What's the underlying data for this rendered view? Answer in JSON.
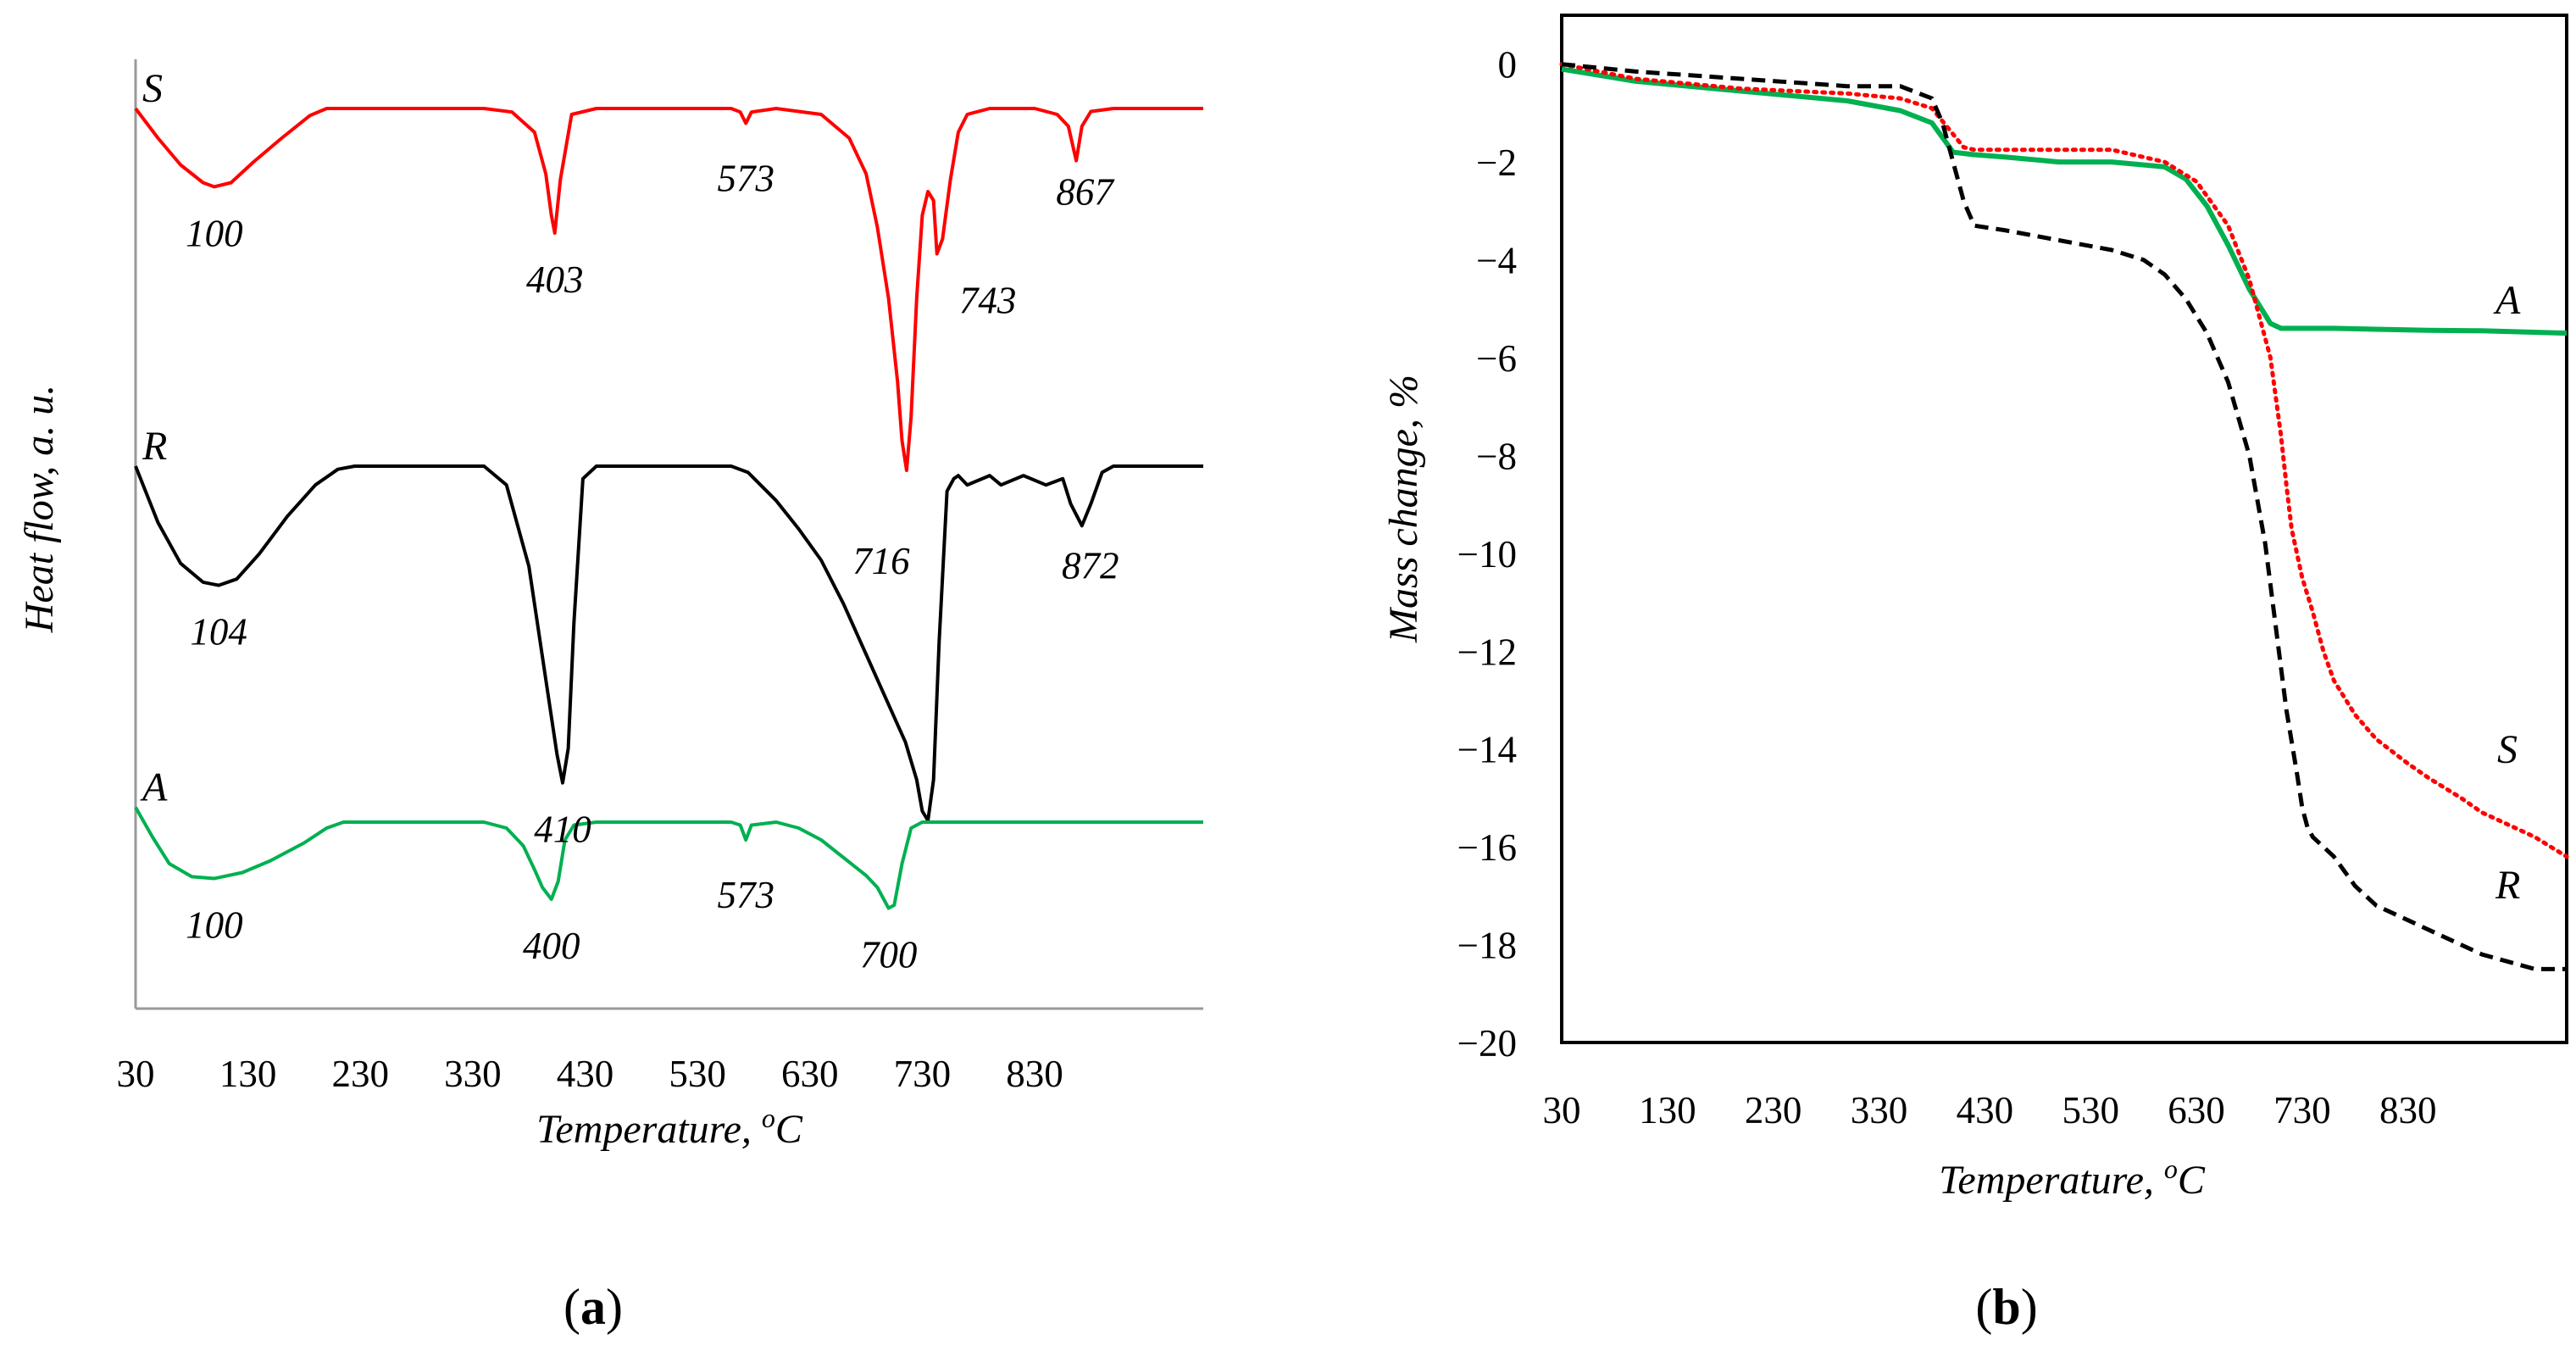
{
  "panels": {
    "a": {
      "label_open": "(",
      "label_letter": "a",
      "label_close": ")"
    },
    "b": {
      "label_open": "(",
      "label_letter": "b",
      "label_close": ")"
    }
  },
  "colors": {
    "S": "#ff0000",
    "R": "#000000",
    "A": "#00b050"
  },
  "chart_data": [
    {
      "type": "line",
      "panel": "a",
      "title": "",
      "xlabel": "Temperature, ",
      "xlabel_super": "o",
      "xlabel_unit": "C",
      "ylabel_main": "Heat flow, ",
      "ylabel_unit": "a. u.",
      "xlim": [
        30,
        980
      ],
      "x_ticks": [
        30,
        130,
        230,
        330,
        430,
        530,
        630,
        730,
        830
      ],
      "x_tick_labels": [
        "30",
        "130",
        "230",
        "330",
        "430",
        "530",
        "630",
        "730",
        "830"
      ],
      "y_ticks": "none (arbitrary units, curves offset vertically)",
      "series": [
        {
          "name": "S",
          "color": "#ff0000",
          "style": "solid",
          "baseline": 0,
          "x": [
            30,
            50,
            70,
            90,
            100,
            115,
            135,
            160,
            185,
            200,
            215,
            300,
            340,
            365,
            385,
            395,
            400,
            403,
            408,
            418,
            440,
            500,
            560,
            568,
            573,
            578,
            600,
            640,
            665,
            680,
            690,
            700,
            708,
            712,
            716,
            720,
            725,
            730,
            735,
            740,
            743,
            748,
            755,
            762,
            770,
            790,
            830,
            850,
            860,
            867,
            872,
            880,
            900,
            980
          ],
          "y": [
            0,
            -0.5,
            -0.95,
            -1.25,
            -1.32,
            -1.25,
            -0.9,
            -0.5,
            -0.12,
            0,
            0,
            0,
            0,
            -0.06,
            -0.4,
            -1.1,
            -1.8,
            -2.1,
            -1.2,
            -0.1,
            0,
            0,
            0,
            -0.06,
            -0.25,
            -0.06,
            0,
            -0.1,
            -0.5,
            -1.1,
            -2.0,
            -3.2,
            -4.6,
            -5.6,
            -6.1,
            -5.2,
            -3.2,
            -1.8,
            -1.4,
            -1.55,
            -2.45,
            -2.2,
            -1.2,
            -0.4,
            -0.1,
            0,
            0,
            -0.1,
            -0.3,
            -0.88,
            -0.3,
            -0.05,
            0,
            0
          ],
          "peak_labels": [
            {
              "x": 100,
              "text": "100"
            },
            {
              "x": 403,
              "text": "403"
            },
            {
              "x": 573,
              "text": "573"
            },
            {
              "x": 743,
              "text": "743"
            },
            {
              "x": 716,
              "text": "716"
            },
            {
              "x": 867,
              "text": "867"
            }
          ]
        },
        {
          "name": "R",
          "color": "#000000",
          "style": "solid",
          "baseline": 0,
          "x": [
            30,
            50,
            70,
            90,
            104,
            120,
            140,
            165,
            190,
            210,
            225,
            300,
            340,
            360,
            380,
            395,
            405,
            410,
            415,
            420,
            428,
            440,
            500,
            560,
            575,
            600,
            620,
            640,
            660,
            680,
            700,
            715,
            725,
            730,
            735,
            740,
            745,
            752,
            758,
            762,
            770,
            790,
            800,
            820,
            840,
            855,
            862,
            872,
            880,
            890,
            900,
            980
          ],
          "y": [
            0,
            -0.9,
            -1.55,
            -1.85,
            -1.9,
            -1.8,
            -1.4,
            -0.8,
            -0.3,
            -0.05,
            0,
            0,
            0,
            -0.3,
            -1.6,
            -3.4,
            -4.6,
            -5.05,
            -4.5,
            -2.5,
            -0.2,
            0,
            0,
            0,
            -0.1,
            -0.55,
            -1.0,
            -1.5,
            -2.2,
            -3.0,
            -3.8,
            -4.4,
            -5.0,
            -5.5,
            -5.65,
            -5.0,
            -2.8,
            -0.4,
            -0.2,
            -0.15,
            -0.3,
            -0.15,
            -0.3,
            -0.15,
            -0.3,
            -0.2,
            -0.6,
            -0.95,
            -0.6,
            -0.1,
            0,
            0
          ],
          "peak_labels": [
            {
              "x": 104,
              "text": "104"
            },
            {
              "x": 410,
              "text": "410"
            },
            {
              "x": 872,
              "text": "872"
            }
          ]
        },
        {
          "name": "A",
          "color": "#00b050",
          "style": "solid",
          "baseline": 0,
          "x": [
            30,
            45,
            60,
            80,
            100,
            125,
            150,
            180,
            200,
            215,
            230,
            300,
            340,
            360,
            375,
            385,
            392,
            400,
            406,
            412,
            420,
            440,
            560,
            568,
            573,
            578,
            600,
            620,
            640,
            660,
            680,
            690,
            700,
            705,
            712,
            720,
            730,
            980
          ],
          "y": [
            0.25,
            -0.25,
            -0.7,
            -0.92,
            -0.95,
            -0.85,
            -0.65,
            -0.35,
            -0.1,
            0,
            0,
            0,
            0,
            -0.1,
            -0.4,
            -0.8,
            -1.1,
            -1.3,
            -1.0,
            -0.3,
            -0.05,
            0,
            0,
            -0.05,
            -0.3,
            -0.05,
            0,
            -0.1,
            -0.3,
            -0.6,
            -0.9,
            -1.1,
            -1.45,
            -1.4,
            -0.7,
            -0.1,
            0,
            0
          ],
          "peak_labels": [
            {
              "x": 100,
              "text": "100"
            },
            {
              "x": 400,
              "text": "400"
            },
            {
              "x": 573,
              "text": "573"
            },
            {
              "x": 700,
              "text": "700"
            }
          ]
        }
      ]
    },
    {
      "type": "line",
      "panel": "b",
      "title": "",
      "xlabel": "Temperature, ",
      "xlabel_super": "o",
      "xlabel_unit": "C",
      "ylabel": "Mass change, %",
      "xlim": [
        30,
        980
      ],
      "ylim": [
        -20,
        1
      ],
      "x_ticks": [
        30,
        130,
        230,
        330,
        430,
        530,
        630,
        730,
        830
      ],
      "x_tick_labels": [
        "30",
        "130",
        "230",
        "330",
        "430",
        "530",
        "630",
        "730",
        "830"
      ],
      "y_ticks": [
        0,
        -2,
        -4,
        -6,
        -8,
        -10,
        -12,
        -14,
        -16,
        -18,
        -20
      ],
      "y_tick_labels": [
        "0",
        "−2",
        "−4",
        "−6",
        "−8",
        "−10",
        "−12",
        "−14",
        "−16",
        "−18",
        "−20"
      ],
      "grid": false,
      "series": [
        {
          "name": "A",
          "color": "#00b050",
          "style": "solid",
          "x": [
            30,
            100,
            200,
            300,
            350,
            380,
            390,
            400,
            420,
            450,
            500,
            550,
            600,
            620,
            640,
            660,
            680,
            700,
            710,
            715,
            720,
            760,
            800,
            850,
            900,
            980
          ],
          "y": [
            -0.1,
            -0.35,
            -0.55,
            -0.75,
            -0.95,
            -1.2,
            -1.5,
            -1.8,
            -1.85,
            -1.9,
            -2.0,
            -2.0,
            -2.1,
            -2.35,
            -2.9,
            -3.7,
            -4.6,
            -5.3,
            -5.4,
            -5.4,
            -5.4,
            -5.4,
            -5.42,
            -5.44,
            -5.45,
            -5.5
          ],
          "label": "A"
        },
        {
          "name": "S",
          "color": "#ff0000",
          "style": "dotted",
          "x": [
            30,
            100,
            200,
            300,
            350,
            380,
            395,
            410,
            420,
            450,
            500,
            550,
            600,
            630,
            660,
            680,
            700,
            710,
            715,
            720,
            730,
            740,
            750,
            760,
            780,
            800,
            830,
            850,
            880,
            900,
            950,
            980
          ],
          "y": [
            0,
            -0.3,
            -0.5,
            -0.6,
            -0.7,
            -0.9,
            -1.3,
            -1.7,
            -1.75,
            -1.75,
            -1.75,
            -1.75,
            -2.0,
            -2.4,
            -3.3,
            -4.4,
            -6.0,
            -7.6,
            -8.6,
            -9.5,
            -10.5,
            -11.2,
            -12.0,
            -12.6,
            -13.3,
            -13.8,
            -14.3,
            -14.6,
            -15.0,
            -15.3,
            -15.8,
            -16.2
          ],
          "label": "S"
        },
        {
          "name": "R",
          "color": "#000000",
          "style": "dashed",
          "x": [
            30,
            100,
            200,
            300,
            350,
            380,
            390,
            400,
            410,
            420,
            450,
            500,
            550,
            580,
            600,
            620,
            640,
            660,
            680,
            695,
            705,
            715,
            725,
            730,
            735,
            740,
            760,
            780,
            800,
            830,
            850,
            880,
            900,
            950,
            980
          ],
          "y": [
            0,
            -0.15,
            -0.3,
            -0.45,
            -0.45,
            -0.7,
            -1.2,
            -2.0,
            -2.8,
            -3.3,
            -3.4,
            -3.6,
            -3.8,
            -4.0,
            -4.3,
            -4.8,
            -5.5,
            -6.5,
            -8.0,
            -9.8,
            -11.5,
            -13.2,
            -14.5,
            -15.2,
            -15.6,
            -15.8,
            -16.2,
            -16.8,
            -17.2,
            -17.5,
            -17.7,
            -18.0,
            -18.2,
            -18.5,
            -18.5
          ],
          "label": "R"
        }
      ]
    }
  ]
}
